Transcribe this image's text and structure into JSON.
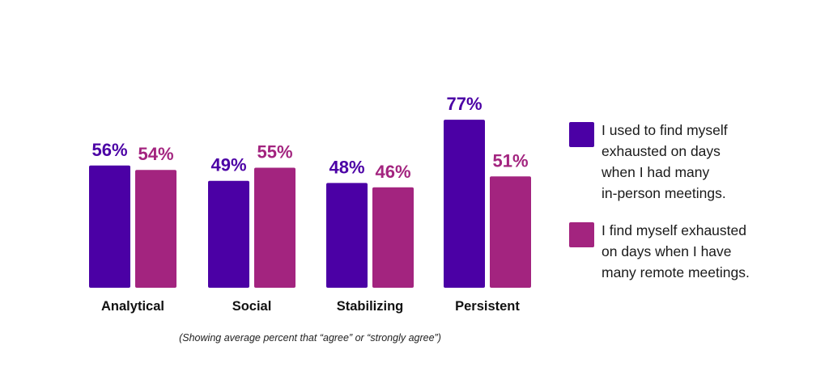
{
  "chart_data": {
    "type": "bar",
    "categories": [
      "Analytical",
      "Social",
      "Stabilizing",
      "Persistent"
    ],
    "series": [
      {
        "name": "I used to find myself\nexhausted on days\nwhen I had many\nin-person meetings.",
        "values": [
          56,
          49,
          48,
          77
        ],
        "labels": [
          "56%",
          "49%",
          "48%",
          "77%"
        ],
        "color": "#4b00a5"
      },
      {
        "name": "I find myself exhausted\non days when I have\nmany remote meetings.",
        "values": [
          54,
          55,
          46,
          51
        ],
        "labels": [
          "54%",
          "55%",
          "46%",
          "51%"
        ],
        "color": "#a3247f"
      }
    ],
    "ylim": [
      0,
      100
    ],
    "grid": false,
    "legend_position": "right",
    "caption": "(Showing average percent that “agree” or “strongly agree”)"
  }
}
